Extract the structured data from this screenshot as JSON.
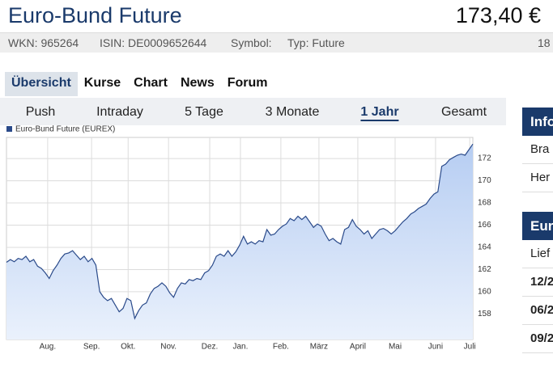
{
  "header": {
    "title": "Euro-Bund Future",
    "price": "173,40 €"
  },
  "info_bar": {
    "wkn": "WKN: 965264",
    "isin": "ISIN: DE0009652644",
    "symbol": "Symbol:",
    "type": "Typ: Future",
    "extra": "18"
  },
  "tabs": [
    "Übersicht",
    "Kurse",
    "Chart",
    "News",
    "Forum"
  ],
  "selected_tab": 0,
  "periods": [
    "Push",
    "Intraday",
    "5 Tage",
    "3 Monate",
    "1 Jahr",
    "Gesamt"
  ],
  "selected_period": 4,
  "sidebar": [
    {
      "title": "Info",
      "rows": [
        "Bra",
        "Her"
      ]
    },
    {
      "title": "Eur",
      "rows": [
        "Lief",
        "12/2",
        "06/2",
        "09/2"
      ]
    }
  ],
  "chart_data": {
    "type": "line",
    "series": [
      {
        "name": "Euro-Bund Future (EUREX)",
        "color": "#2a4a8a",
        "values": [
          162.65,
          162.9,
          162.7,
          163.0,
          162.9,
          163.2,
          162.7,
          162.9,
          162.3,
          162.1,
          161.7,
          161.2,
          161.9,
          162.4,
          163.0,
          163.4,
          163.5,
          163.7,
          163.3,
          162.9,
          163.2,
          162.7,
          163.0,
          162.4,
          160.0,
          159.5,
          159.2,
          159.4,
          158.8,
          158.2,
          158.5,
          159.4,
          159.2,
          157.6,
          158.3,
          158.8,
          159.0,
          159.8,
          160.3,
          160.5,
          160.8,
          160.5,
          159.9,
          159.5,
          160.3,
          160.8,
          160.7,
          161.1,
          161.0,
          161.2,
          161.1,
          161.7,
          161.9,
          162.4,
          163.2,
          163.4,
          163.2,
          163.7,
          163.2,
          163.6,
          164.2,
          165.0,
          164.3,
          164.5,
          164.3,
          164.6,
          164.5,
          165.6,
          165.1,
          165.2,
          165.6,
          165.9,
          166.1,
          166.6,
          166.4,
          166.8,
          166.5,
          166.8,
          166.3,
          165.8,
          166.1,
          165.9,
          165.2,
          164.6,
          164.8,
          164.5,
          164.3,
          165.6,
          165.8,
          166.5,
          165.9,
          165.6,
          165.2,
          165.5,
          164.8,
          165.2,
          165.6,
          165.7,
          165.5,
          165.2,
          165.5,
          165.9,
          166.3,
          166.6,
          167.0,
          167.2,
          167.5,
          167.7,
          167.9,
          168.4,
          168.8,
          169.0,
          171.3,
          171.5,
          171.9,
          172.1,
          172.3,
          172.4,
          172.3,
          172.8,
          173.3
        ]
      }
    ],
    "xlim": [
      0,
      120
    ],
    "xticks": [
      {
        "value": 10.6,
        "label": "Aug."
      },
      {
        "value": 21.9,
        "label": "Sep."
      },
      {
        "value": 31.3,
        "label": "Okt."
      },
      {
        "value": 41.7,
        "label": "Nov."
      },
      {
        "value": 52.3,
        "label": "Dez."
      },
      {
        "value": 60.2,
        "label": "Jan."
      },
      {
        "value": 70.6,
        "label": "Feb."
      },
      {
        "value": 80.4,
        "label": "März"
      },
      {
        "value": 90.4,
        "label": "April"
      },
      {
        "value": 100,
        "label": "Mai"
      },
      {
        "value": 110.4,
        "label": "Juni"
      },
      {
        "value": 119.2,
        "label": "Juli"
      }
    ],
    "ylim": [
      155.7,
      173.9
    ],
    "yticks": [
      158,
      160,
      162,
      164,
      166,
      168,
      170,
      172
    ],
    "grid": true,
    "y_axis_side": "right",
    "fill_color": "#c9dbf6"
  }
}
